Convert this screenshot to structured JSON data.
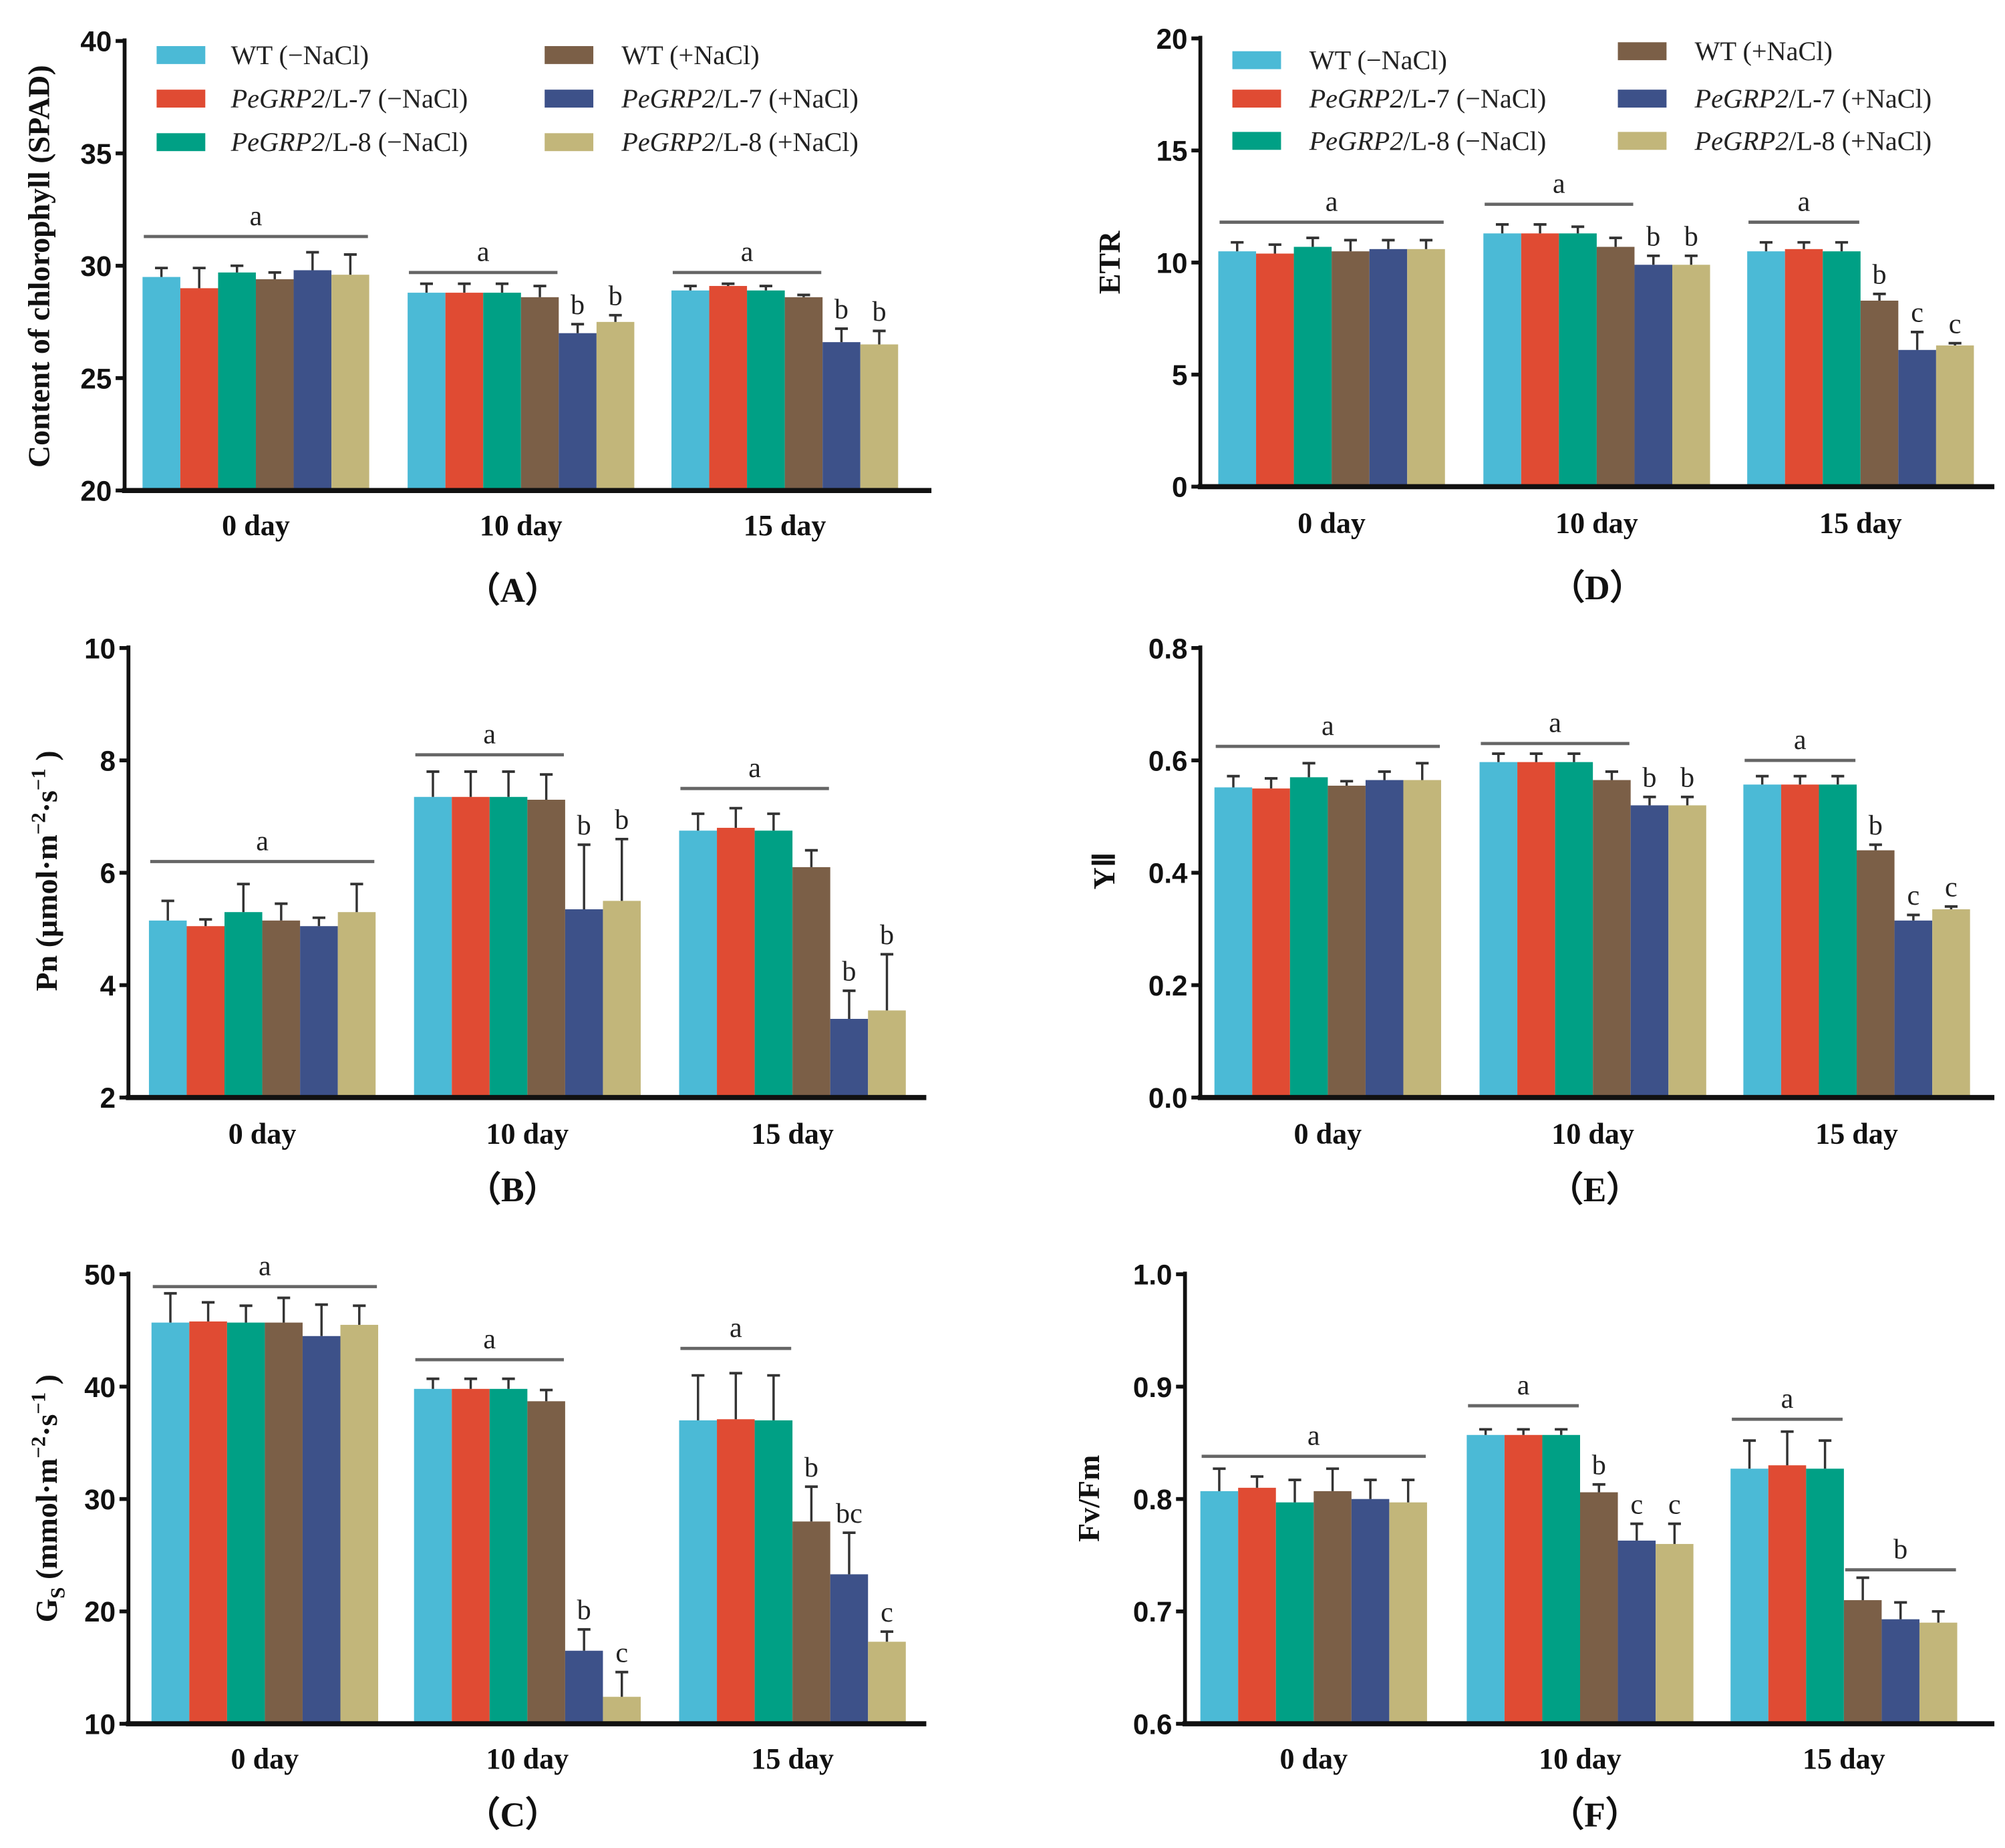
{
  "series_names": [
    "WT (−NaCl)",
    "PeGRP2/L-7 (−NaCl)",
    "PeGRP2/L-8 (−NaCl)",
    "WT (+NaCl)",
    "PeGRP2/L-7 (+NaCl)",
    "PeGRP2/L-8 (+NaCl)"
  ],
  "legend": [
    {
      "italic": "",
      "text": "WT (−NaCl)"
    },
    {
      "italic": "PeGRP2",
      "text": "/L-7  (−NaCl)"
    },
    {
      "italic": "PeGRP2",
      "text": "/L-8  (−NaCl)"
    },
    {
      "italic": "",
      "text": "WT (+NaCl)"
    },
    {
      "italic": "PeGRP2",
      "text": "/L-7  (+NaCl)"
    },
    {
      "italic": "PeGRP2",
      "text": "/L-8  (+NaCl)"
    }
  ],
  "colors": [
    "#4bbad6",
    "#e04b33",
    "#00a085",
    "#7b5f47",
    "#3d5189",
    "#c2b67a"
  ],
  "chart_data": [
    {
      "id": "A",
      "type": "bar",
      "panel_label": "（A）",
      "ylabel_parts": [
        {
          "t": "Content of chlorophyll (SPAD)"
        }
      ],
      "categories": [
        "0 day",
        "10 day",
        "15 day"
      ],
      "ylim": [
        20,
        40
      ],
      "yticks": [
        20,
        25,
        30,
        35,
        40
      ],
      "tick_decimals": 0,
      "legend": "top",
      "values": [
        [
          29.5,
          29.0,
          29.7,
          29.4,
          29.8,
          29.6
        ],
        [
          28.8,
          28.8,
          28.8,
          28.6,
          27.0,
          27.5
        ],
        [
          28.9,
          29.1,
          28.9,
          28.6,
          26.6,
          26.5
        ]
      ],
      "errors": [
        [
          0.4,
          0.9,
          0.3,
          0.3,
          0.8,
          0.9
        ],
        [
          0.4,
          0.4,
          0.4,
          0.5,
          0.4,
          0.3
        ],
        [
          0.2,
          0.1,
          0.2,
          0.1,
          0.6,
          0.6
        ]
      ],
      "significance": [
        {
          "lines": [
            {
              "from": 0,
              "to": 5,
              "value": 31.3,
              "label": "a"
            }
          ],
          "letters": []
        },
        {
          "lines": [
            {
              "from": 0,
              "to": 3,
              "value": 29.7,
              "label": "a"
            }
          ],
          "letters": [
            {
              "bar": 4,
              "label": "b"
            },
            {
              "bar": 5,
              "label": "b"
            }
          ]
        },
        {
          "lines": [
            {
              "from": 0,
              "to": 3,
              "value": 29.7,
              "label": "a"
            }
          ],
          "letters": [
            {
              "bar": 4,
              "label": "b"
            },
            {
              "bar": 5,
              "label": "b"
            }
          ]
        }
      ]
    },
    {
      "id": "D",
      "type": "bar",
      "panel_label": "（D）",
      "ylabel_parts": [
        {
          "t": "ETR"
        }
      ],
      "categories": [
        "0 day",
        "10 day",
        "15 day"
      ],
      "ylim": [
        0,
        20
      ],
      "yticks": [
        0,
        5,
        10,
        15,
        20
      ],
      "tick_decimals": 0,
      "legend": "top",
      "values": [
        [
          10.5,
          10.4,
          10.7,
          10.5,
          10.6,
          10.6
        ],
        [
          11.3,
          11.3,
          11.3,
          10.7,
          9.9,
          9.9
        ],
        [
          10.5,
          10.6,
          10.5,
          8.3,
          6.1,
          6.3
        ]
      ],
      "errors": [
        [
          0.4,
          0.4,
          0.4,
          0.5,
          0.4,
          0.4
        ],
        [
          0.4,
          0.4,
          0.3,
          0.4,
          0.4,
          0.4
        ],
        [
          0.4,
          0.3,
          0.4,
          0.3,
          0.8,
          0.1
        ]
      ],
      "significance": [
        {
          "lines": [
            {
              "from": 0,
              "to": 5,
              "value": 11.8,
              "label": "a"
            }
          ],
          "letters": []
        },
        {
          "lines": [
            {
              "from": 0,
              "to": 3,
              "value": 12.6,
              "label": "a"
            }
          ],
          "letters": [
            {
              "bar": 4,
              "label": "b"
            },
            {
              "bar": 5,
              "label": "b"
            }
          ]
        },
        {
          "lines": [
            {
              "from": 0,
              "to": 2,
              "value": 11.8,
              "label": "a"
            }
          ],
          "letters": [
            {
              "bar": 3,
              "label": "b"
            },
            {
              "bar": 4,
              "label": "c"
            },
            {
              "bar": 5,
              "label": "c"
            }
          ]
        }
      ]
    },
    {
      "id": "B",
      "type": "bar",
      "panel_label": "（B）",
      "ylabel_parts": [
        {
          "t": "Pn (μmol·m"
        },
        {
          "t": "−2",
          "sup": true
        },
        {
          "t": "·s"
        },
        {
          "t": "−1",
          "sup": true
        },
        {
          "t": " )"
        }
      ],
      "categories": [
        "0 day",
        "10 day",
        "15 day"
      ],
      "ylim": [
        2,
        10
      ],
      "yticks": [
        2,
        4,
        6,
        8,
        10
      ],
      "tick_decimals": 0,
      "values": [
        [
          5.15,
          5.05,
          5.3,
          5.15,
          5.05,
          5.3
        ],
        [
          7.35,
          7.35,
          7.35,
          7.3,
          5.35,
          5.5
        ],
        [
          6.75,
          6.8,
          6.75,
          6.1,
          3.4,
          3.55
        ]
      ],
      "errors": [
        [
          0.35,
          0.12,
          0.5,
          0.3,
          0.15,
          0.5
        ],
        [
          0.45,
          0.45,
          0.45,
          0.45,
          1.15,
          1.1
        ],
        [
          0.3,
          0.35,
          0.3,
          0.3,
          0.5,
          1.0
        ]
      ],
      "significance": [
        {
          "lines": [
            {
              "from": 0,
              "to": 5,
              "value": 6.2,
              "label": "a"
            }
          ],
          "letters": []
        },
        {
          "lines": [
            {
              "from": 0,
              "to": 3,
              "value": 8.1,
              "label": "a"
            }
          ],
          "letters": [
            {
              "bar": 4,
              "label": "b"
            },
            {
              "bar": 5,
              "label": "b"
            }
          ]
        },
        {
          "lines": [
            {
              "from": 0,
              "to": 3,
              "value": 7.5,
              "label": "a"
            }
          ],
          "letters": [
            {
              "bar": 4,
              "label": "b"
            },
            {
              "bar": 5,
              "label": "b"
            }
          ]
        }
      ]
    },
    {
      "id": "E",
      "type": "bar",
      "panel_label": "（E）",
      "ylabel_parts": [
        {
          "t": "YⅡ"
        }
      ],
      "categories": [
        "0 day",
        "10 day",
        "15 day"
      ],
      "ylim": [
        0,
        0.8
      ],
      "yticks": [
        0,
        0.2,
        0.4,
        0.6,
        0.8
      ],
      "tick_decimals": 1,
      "values": [
        [
          0.552,
          0.55,
          0.57,
          0.555,
          0.565,
          0.565
        ],
        [
          0.597,
          0.597,
          0.597,
          0.565,
          0.52,
          0.52
        ],
        [
          0.557,
          0.557,
          0.557,
          0.44,
          0.315,
          0.335
        ]
      ],
      "errors": [
        [
          0.02,
          0.018,
          0.025,
          0.008,
          0.015,
          0.03
        ],
        [
          0.015,
          0.015,
          0.015,
          0.015,
          0.015,
          0.015
        ],
        [
          0.015,
          0.015,
          0.015,
          0.01,
          0.01,
          0.005
        ]
      ],
      "significance": [
        {
          "lines": [
            {
              "from": 0,
              "to": 5,
              "value": 0.625,
              "label": "a"
            }
          ],
          "letters": []
        },
        {
          "lines": [
            {
              "from": 0,
              "to": 3,
              "value": 0.63,
              "label": "a"
            }
          ],
          "letters": [
            {
              "bar": 4,
              "label": "b"
            },
            {
              "bar": 5,
              "label": "b"
            }
          ]
        },
        {
          "lines": [
            {
              "from": 0,
              "to": 2,
              "value": 0.6,
              "label": "a"
            }
          ],
          "letters": [
            {
              "bar": 3,
              "label": "b"
            },
            {
              "bar": 4,
              "label": "c"
            },
            {
              "bar": 5,
              "label": "c"
            }
          ]
        }
      ]
    },
    {
      "id": "C",
      "type": "bar",
      "panel_label": "（C）",
      "ylabel_parts": [
        {
          "t": "G"
        },
        {
          "t": "S",
          "sub": true
        },
        {
          "t": " (mmol·m"
        },
        {
          "t": "−2",
          "sup": true
        },
        {
          "t": "·s"
        },
        {
          "t": "−1",
          "sup": true
        },
        {
          "t": " )"
        }
      ],
      "categories": [
        "0 day",
        "10 day",
        "15 day"
      ],
      "ylim": [
        10,
        50
      ],
      "yticks": [
        10,
        20,
        30,
        40,
        50
      ],
      "tick_decimals": 0,
      "values": [
        [
          45.7,
          45.8,
          45.7,
          45.7,
          44.5,
          45.5
        ],
        [
          39.8,
          39.8,
          39.8,
          38.7,
          16.5,
          12.4
        ],
        [
          37.0,
          37.1,
          37.0,
          28.0,
          23.3,
          17.3
        ]
      ],
      "errors": [
        [
          2.6,
          1.7,
          1.5,
          2.2,
          2.8,
          1.7
        ],
        [
          0.9,
          0.9,
          0.9,
          1.0,
          1.9,
          2.2
        ],
        [
          4.0,
          4.1,
          4.0,
          3.1,
          3.7,
          0.9
        ]
      ],
      "significance": [
        {
          "lines": [
            {
              "from": 0,
              "to": 5,
              "value": 48.9,
              "label": "a"
            }
          ],
          "letters": []
        },
        {
          "lines": [
            {
              "from": 0,
              "to": 3,
              "value": 42.4,
              "label": "a"
            }
          ],
          "letters": [
            {
              "bar": 4,
              "label": "b"
            },
            {
              "bar": 5,
              "label": "c"
            }
          ]
        },
        {
          "lines": [
            {
              "from": 0,
              "to": 2,
              "value": 43.4,
              "label": "a"
            }
          ],
          "letters": [
            {
              "bar": 3,
              "label": "b"
            },
            {
              "bar": 4,
              "label": "bc"
            },
            {
              "bar": 5,
              "label": "c"
            }
          ]
        }
      ]
    },
    {
      "id": "F",
      "type": "bar",
      "panel_label": "（F）",
      "ylabel_parts": [
        {
          "t": "Fv/Fm"
        }
      ],
      "categories": [
        "0 day",
        "10 day",
        "15 day"
      ],
      "ylim": [
        0.6,
        1.0
      ],
      "yticks": [
        0.6,
        0.7,
        0.8,
        0.9,
        1.0
      ],
      "tick_decimals": 1,
      "values": [
        [
          0.807,
          0.81,
          0.797,
          0.807,
          0.8,
          0.797
        ],
        [
          0.857,
          0.857,
          0.857,
          0.806,
          0.763,
          0.76
        ],
        [
          0.827,
          0.83,
          0.827,
          0.71,
          0.693,
          0.69
        ]
      ],
      "errors": [
        [
          0.02,
          0.01,
          0.02,
          0.02,
          0.017,
          0.02
        ],
        [
          0.005,
          0.005,
          0.005,
          0.007,
          0.015,
          0.018
        ],
        [
          0.025,
          0.03,
          0.025,
          0.02,
          0.015,
          0.01
        ]
      ],
      "significance": [
        {
          "lines": [
            {
              "from": 0,
              "to": 5,
              "value": 0.838,
              "label": "a"
            }
          ],
          "letters": []
        },
        {
          "lines": [
            {
              "from": 0,
              "to": 2,
              "value": 0.883,
              "label": "a"
            }
          ],
          "letters": [
            {
              "bar": 3,
              "label": "b"
            },
            {
              "bar": 4,
              "label": "c"
            },
            {
              "bar": 5,
              "label": "c"
            }
          ]
        },
        {
          "lines": [
            {
              "from": 0,
              "to": 2,
              "value": 0.871,
              "label": "a"
            },
            {
              "from": 3,
              "to": 5,
              "value": 0.737,
              "label": "b"
            }
          ],
          "letters": []
        }
      ]
    }
  ]
}
